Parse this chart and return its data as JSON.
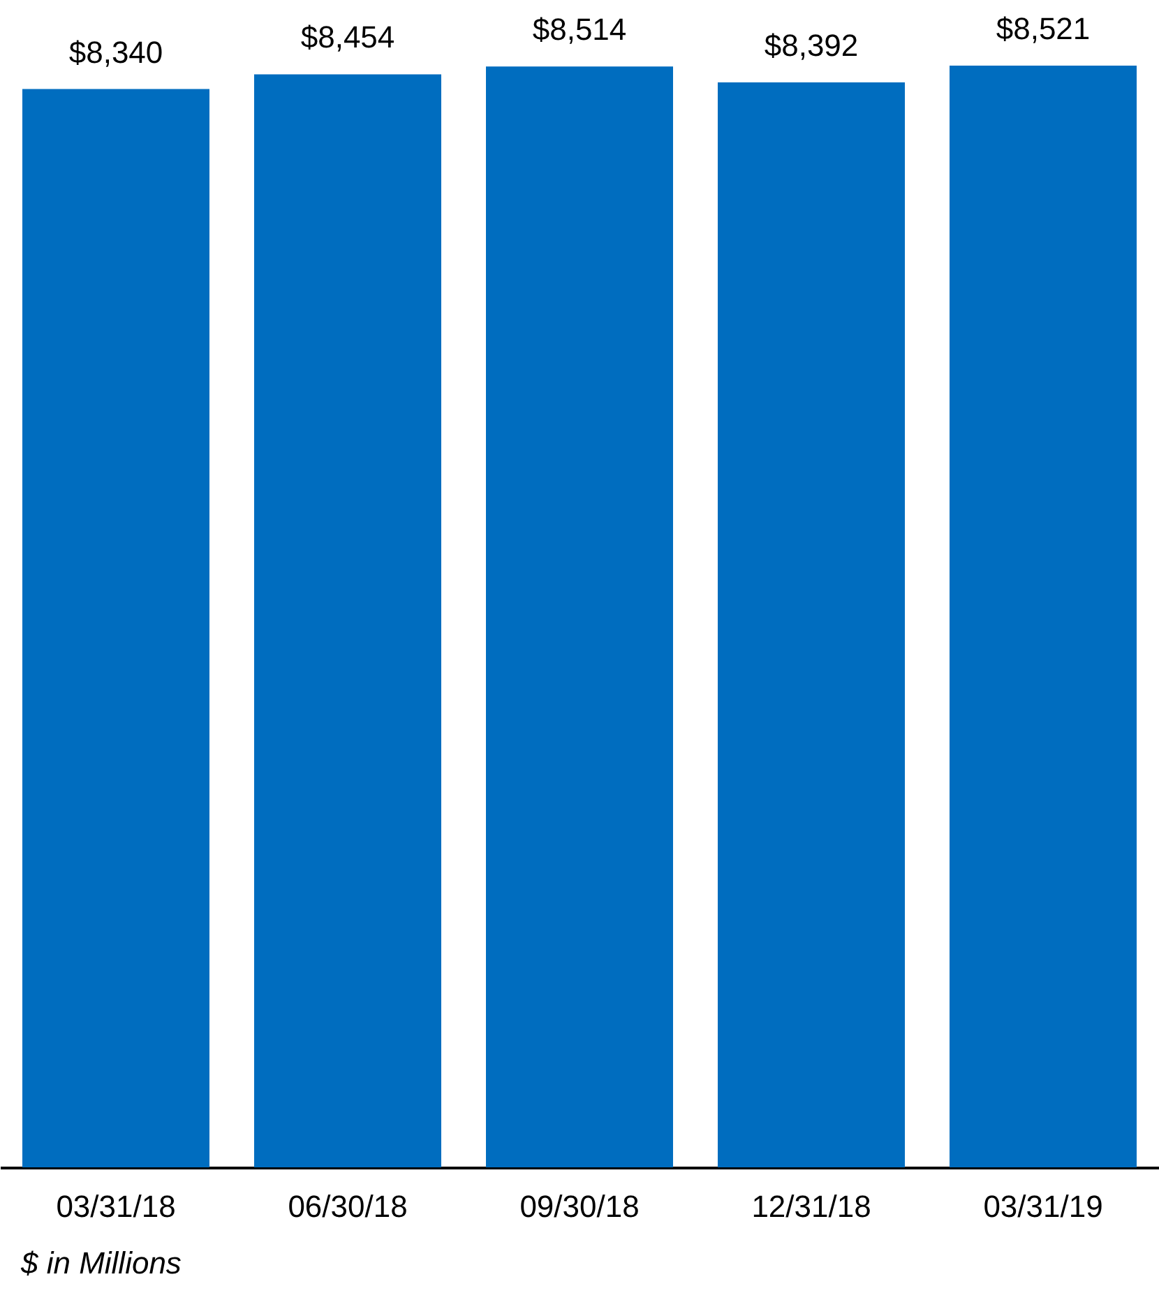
{
  "chart_data": {
    "type": "bar",
    "categories": [
      "03/31/18",
      "06/30/18",
      "09/30/18",
      "12/31/18",
      "03/31/19"
    ],
    "values": [
      8340,
      8454,
      8514,
      8392,
      8521
    ],
    "value_labels": [
      "$8,340",
      "$8,454",
      "$8,514",
      "$8,392",
      "$8,521"
    ],
    "color": "#006dbf",
    "grid": false,
    "annotations": [
      "$ in Millions"
    ]
  }
}
